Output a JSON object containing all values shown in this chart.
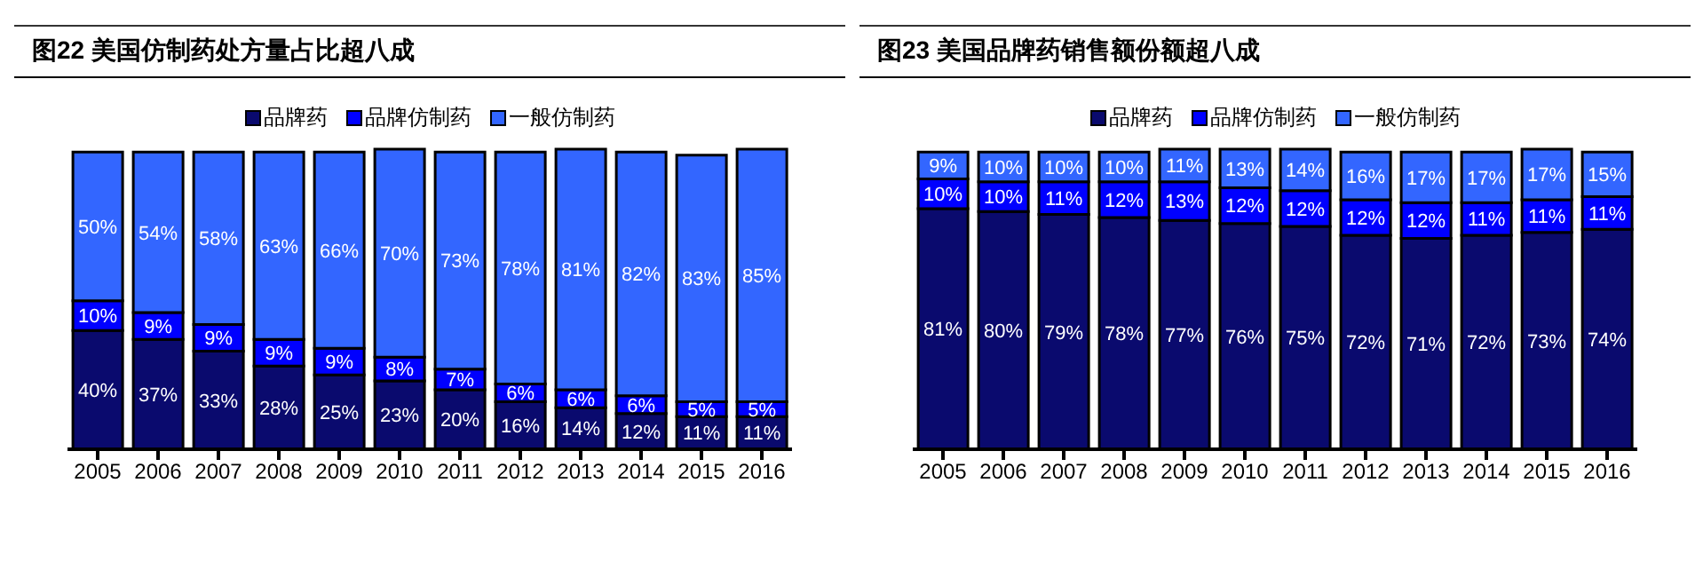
{
  "chart_data": [
    {
      "type": "bar",
      "title": "图22 美国仿制药处方量占比超八成",
      "stacked": true,
      "legend": "top",
      "grid": false,
      "categories": [
        "2005",
        "2006",
        "2007",
        "2008",
        "2009",
        "2010",
        "2011",
        "2012",
        "2013",
        "2014",
        "2015",
        "2016"
      ],
      "series": [
        {
          "name": "品牌药",
          "color": "#0a0a6e",
          "values": [
            40,
            37,
            33,
            28,
            25,
            23,
            20,
            16,
            14,
            12,
            11,
            11
          ],
          "value_labels": [
            "40%",
            "37%",
            "33%",
            "28%",
            "25%",
            "23%",
            "20%",
            "16%",
            "14%",
            "12%",
            "11%",
            "11%"
          ]
        },
        {
          "name": "品牌仿制药",
          "color": "#0000ff",
          "values": [
            10,
            9,
            9,
            9,
            9,
            8,
            7,
            6,
            6,
            6,
            5,
            5
          ],
          "value_labels": [
            "10%",
            "9%",
            "9%",
            "9%",
            "9%",
            "8%",
            "7%",
            "6%",
            "6%",
            "6%",
            "5%",
            "5%"
          ]
        },
        {
          "name": "一般仿制药",
          "color": "#3366ff",
          "values": [
            50,
            54,
            58,
            63,
            66,
            70,
            73,
            78,
            81,
            82,
            83,
            85
          ],
          "value_labels": [
            "50%",
            "54%",
            "58%",
            "63%",
            "66%",
            "70%",
            "73%",
            "78%",
            "81%",
            "82%",
            "83%",
            "85%"
          ]
        }
      ]
    },
    {
      "type": "bar",
      "title": "图23 美国品牌药销售额份额超八成",
      "stacked": true,
      "legend": "top",
      "grid": false,
      "categories": [
        "2005",
        "2006",
        "2007",
        "2008",
        "2009",
        "2010",
        "2011",
        "2012",
        "2013",
        "2014",
        "2015",
        "2016"
      ],
      "series": [
        {
          "name": "品牌药",
          "color": "#0a0a6e",
          "values": [
            81,
            80,
            79,
            78,
            77,
            76,
            75,
            72,
            71,
            72,
            73,
            74
          ],
          "value_labels": [
            "81%",
            "80%",
            "79%",
            "78%",
            "77%",
            "76%",
            "75%",
            "72%",
            "71%",
            "72%",
            "73%",
            "74%"
          ]
        },
        {
          "name": "品牌仿制药",
          "color": "#0000ff",
          "values": [
            10,
            10,
            11,
            12,
            13,
            12,
            12,
            12,
            12,
            11,
            11,
            11
          ],
          "value_labels": [
            "10%",
            "10%",
            "11%",
            "12%",
            "13%",
            "12%",
            "12%",
            "12%",
            "12%",
            "11%",
            "11%",
            "11%"
          ]
        },
        {
          "name": "一般仿制药",
          "color": "#3366ff",
          "values": [
            9,
            10,
            10,
            10,
            11,
            13,
            14,
            16,
            17,
            17,
            17,
            15
          ],
          "value_labels": [
            "9%",
            "10%",
            "10%",
            "10%",
            "11%",
            "13%",
            "14%",
            "16%",
            "17%",
            "17%",
            "17%",
            "15%"
          ]
        }
      ]
    }
  ]
}
